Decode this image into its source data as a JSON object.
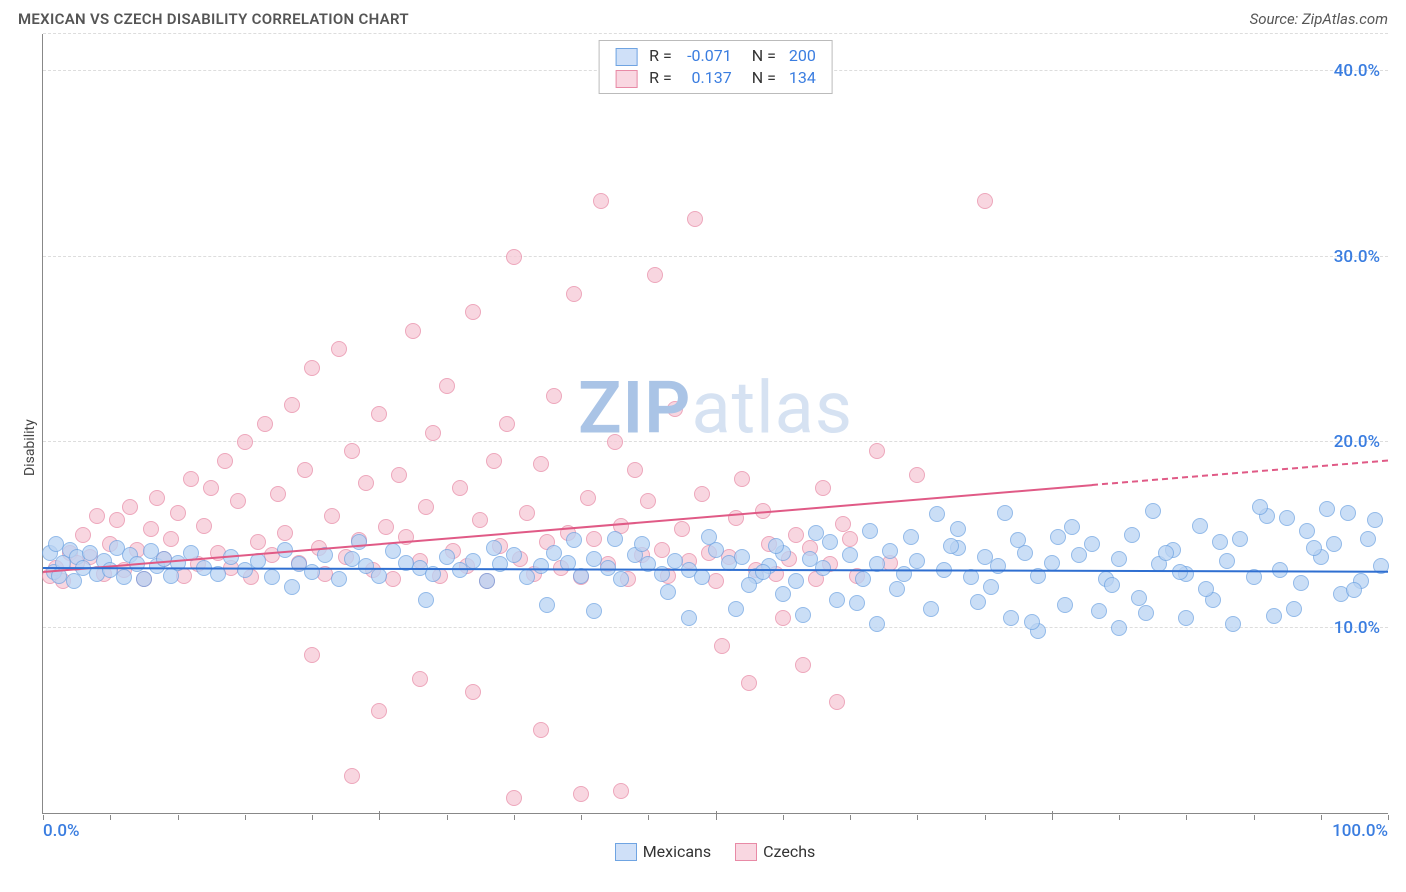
{
  "title": "MEXICAN VS CZECH DISABILITY CORRELATION CHART",
  "source": "Source: ZipAtlas.com",
  "ylabel": "Disability",
  "watermark": {
    "bold": "ZIP",
    "light": "atlas",
    "color_bold": "#aac4e6",
    "color_light": "#d6e2f2"
  },
  "series": {
    "mexicans": {
      "label": "Mexicans",
      "fill": "#b9d3f3",
      "stroke": "#6fa4e2",
      "swatch_fill": "#cfe0f8",
      "swatch_border": "#6fa4e2",
      "r_label": "R =",
      "r_value": "-0.071",
      "n_label": "N =",
      "n_value": "200",
      "value_color": "#3a7de0",
      "trend": {
        "color": "#2f6fd1",
        "y_at_x0": 13.2,
        "y_at_x100": 13.0,
        "solid_until_x": 100
      }
    },
    "czechs": {
      "label": "Czechs",
      "fill": "#f6c9d6",
      "stroke": "#e88aa6",
      "swatch_fill": "#f9d7e1",
      "swatch_border": "#e88aa6",
      "r_label": "R =",
      "r_value": "0.137",
      "n_label": "N =",
      "n_value": "134",
      "value_color": "#3a7de0",
      "trend": {
        "color": "#e05a86",
        "y_at_x0": 13.0,
        "y_at_x100": 19.0,
        "solid_until_x": 78
      }
    }
  },
  "axes": {
    "x": {
      "min": 0,
      "max": 100,
      "label_min": "0.0%",
      "label_max": "100.0%",
      "label_color": "#3a7de0",
      "ticks": [
        0,
        5,
        10,
        15,
        20,
        25,
        30,
        35,
        40,
        45,
        50,
        55,
        60,
        65,
        70,
        75,
        80,
        85,
        90,
        95,
        100
      ],
      "major_ticks": [
        25,
        50,
        75
      ]
    },
    "y": {
      "min": 0,
      "max": 42,
      "gridlines": [
        10,
        20,
        30,
        40,
        42
      ],
      "labels": [
        {
          "v": 10,
          "t": "10.0%"
        },
        {
          "v": 20,
          "t": "20.0%"
        },
        {
          "v": 30,
          "t": "30.0%"
        },
        {
          "v": 40,
          "t": "40.0%"
        }
      ],
      "label_color": "#3a7de0"
    }
  },
  "point_radius": 8,
  "data": {
    "mexicans": [
      [
        0.5,
        14
      ],
      [
        0.8,
        13
      ],
      [
        1,
        14.5
      ],
      [
        1.2,
        12.8
      ],
      [
        1.5,
        13.5
      ],
      [
        2,
        14.2
      ],
      [
        2.3,
        12.5
      ],
      [
        2.5,
        13.8
      ],
      [
        3,
        13.2
      ],
      [
        3.5,
        14
      ],
      [
        4,
        12.9
      ],
      [
        4.5,
        13.6
      ],
      [
        5,
        13.1
      ],
      [
        5.5,
        14.3
      ],
      [
        6,
        12.7
      ],
      [
        6.5,
        13.9
      ],
      [
        7,
        13.4
      ],
      [
        7.5,
        12.6
      ],
      [
        8,
        14.1
      ],
      [
        8.5,
        13.3
      ],
      [
        9,
        13.7
      ],
      [
        9.5,
        12.8
      ],
      [
        10,
        13.5
      ],
      [
        11,
        14
      ],
      [
        12,
        13.2
      ],
      [
        13,
        12.9
      ],
      [
        14,
        13.8
      ],
      [
        15,
        13.1
      ],
      [
        16,
        13.6
      ],
      [
        17,
        12.7
      ],
      [
        18,
        14.2
      ],
      [
        19,
        13.4
      ],
      [
        20,
        13
      ],
      [
        21,
        13.9
      ],
      [
        22,
        12.6
      ],
      [
        23,
        13.7
      ],
      [
        24,
        13.3
      ],
      [
        25,
        12.8
      ],
      [
        26,
        14.1
      ],
      [
        27,
        13.5
      ],
      [
        28,
        13.2
      ],
      [
        29,
        12.9
      ],
      [
        30,
        13.8
      ],
      [
        31,
        13.1
      ],
      [
        32,
        13.6
      ],
      [
        33,
        12.5
      ],
      [
        34,
        13.4
      ],
      [
        35,
        13.9
      ],
      [
        36,
        12.7
      ],
      [
        37,
        13.3
      ],
      [
        38,
        14
      ],
      [
        39,
        13.5
      ],
      [
        40,
        12.8
      ],
      [
        41,
        13.7
      ],
      [
        42,
        13.2
      ],
      [
        43,
        12.6
      ],
      [
        44,
        13.9
      ],
      [
        45,
        13.4
      ],
      [
        46,
        12.9
      ],
      [
        47,
        13.6
      ],
      [
        48,
        13.1
      ],
      [
        49,
        12.7
      ],
      [
        50,
        14.2
      ],
      [
        51,
        13.5
      ],
      [
        52,
        13.8
      ],
      [
        53,
        12.8
      ],
      [
        54,
        13.3
      ],
      [
        55,
        14
      ],
      [
        56,
        12.5
      ],
      [
        57,
        13.7
      ],
      [
        58,
        13.2
      ],
      [
        59,
        11.5
      ],
      [
        60,
        13.9
      ],
      [
        61,
        12.6
      ],
      [
        62,
        13.4
      ],
      [
        63,
        14.1
      ],
      [
        64,
        12.9
      ],
      [
        65,
        13.6
      ],
      [
        66,
        11
      ],
      [
        67,
        13.1
      ],
      [
        68,
        14.3
      ],
      [
        69,
        12.7
      ],
      [
        70,
        13.8
      ],
      [
        71,
        13.3
      ],
      [
        72,
        10.5
      ],
      [
        73,
        14
      ],
      [
        74,
        12.8
      ],
      [
        75,
        13.5
      ],
      [
        76,
        11.2
      ],
      [
        77,
        13.9
      ],
      [
        78,
        14.5
      ],
      [
        79,
        12.6
      ],
      [
        80,
        13.7
      ],
      [
        81,
        15
      ],
      [
        82,
        10.8
      ],
      [
        83,
        13.4
      ],
      [
        84,
        14.2
      ],
      [
        85,
        12.9
      ],
      [
        86,
        15.5
      ],
      [
        87,
        11.5
      ],
      [
        88,
        13.6
      ],
      [
        89,
        14.8
      ],
      [
        90,
        12.7
      ],
      [
        91,
        16
      ],
      [
        92,
        13.1
      ],
      [
        93,
        11
      ],
      [
        94,
        15.2
      ],
      [
        95,
        13.8
      ],
      [
        96,
        14.5
      ],
      [
        97,
        16.2
      ],
      [
        98,
        12.5
      ],
      [
        99,
        15.8
      ],
      [
        99.5,
        13.3
      ],
      [
        62,
        10.2
      ],
      [
        74,
        9.8
      ],
      [
        80,
        10
      ],
      [
        85,
        10.5
      ],
      [
        68,
        15.3
      ],
      [
        55,
        11.8
      ],
      [
        48,
        10.5
      ],
      [
        44.5,
        14.5
      ],
      [
        37.5,
        11.2
      ],
      [
        42.5,
        14.8
      ],
      [
        51.5,
        11
      ],
      [
        58.5,
        14.6
      ],
      [
        64.5,
        14.9
      ],
      [
        70.5,
        12.2
      ],
      [
        76.5,
        15.4
      ],
      [
        82.5,
        16.3
      ],
      [
        88.5,
        10.2
      ],
      [
        92.5,
        15.9
      ],
      [
        96.5,
        11.8
      ],
      [
        33.5,
        14.3
      ],
      [
        28.5,
        11.5
      ],
      [
        23.5,
        14.6
      ],
      [
        18.5,
        12.2
      ],
      [
        54.5,
        14.4
      ],
      [
        60.5,
        11.3
      ],
      [
        66.5,
        16.1
      ],
      [
        72.5,
        14.7
      ],
      [
        78.5,
        10.9
      ],
      [
        84.5,
        13.0
      ],
      [
        90.5,
        16.5
      ],
      [
        94.5,
        14.3
      ],
      [
        97.5,
        12
      ],
      [
        39.5,
        14.7
      ],
      [
        46.5,
        11.9
      ],
      [
        52.5,
        12.3
      ],
      [
        57.5,
        15.1
      ],
      [
        63.5,
        12.1
      ],
      [
        69.5,
        11.4
      ],
      [
        75.5,
        14.9
      ],
      [
        81.5,
        11.6
      ],
      [
        87.5,
        14.6
      ],
      [
        93.5,
        12.4
      ],
      [
        98.5,
        14.8
      ],
      [
        41,
        10.9
      ],
      [
        49.5,
        14.9
      ],
      [
        56.5,
        10.7
      ],
      [
        71.5,
        16.2
      ],
      [
        79.5,
        12.3
      ],
      [
        86.5,
        12.1
      ],
      [
        91.5,
        10.6
      ],
      [
        95.5,
        16.4
      ],
      [
        83.5,
        14.0
      ],
      [
        73.5,
        10.3
      ],
      [
        67.5,
        14.4
      ],
      [
        61.5,
        15.2
      ],
      [
        53.5,
        13.0
      ]
    ],
    "czechs": [
      [
        0.5,
        12.8
      ],
      [
        1,
        13.2
      ],
      [
        1.5,
        12.5
      ],
      [
        2,
        14
      ],
      [
        2.5,
        13.5
      ],
      [
        3,
        15
      ],
      [
        3.5,
        13.8
      ],
      [
        4,
        16
      ],
      [
        4.5,
        12.9
      ],
      [
        5,
        14.5
      ],
      [
        5.5,
        15.8
      ],
      [
        6,
        13.1
      ],
      [
        6.5,
        16.5
      ],
      [
        7,
        14.2
      ],
      [
        7.5,
        12.6
      ],
      [
        8,
        15.3
      ],
      [
        8.5,
        17
      ],
      [
        9,
        13.7
      ],
      [
        9.5,
        14.8
      ],
      [
        10,
        16.2
      ],
      [
        10.5,
        12.8
      ],
      [
        11,
        18
      ],
      [
        11.5,
        13.4
      ],
      [
        12,
        15.5
      ],
      [
        12.5,
        17.5
      ],
      [
        13,
        14
      ],
      [
        13.5,
        19
      ],
      [
        14,
        13.2
      ],
      [
        14.5,
        16.8
      ],
      [
        15,
        20
      ],
      [
        15.5,
        12.7
      ],
      [
        16,
        14.6
      ],
      [
        16.5,
        21
      ],
      [
        17,
        13.9
      ],
      [
        17.5,
        17.2
      ],
      [
        18,
        15.1
      ],
      [
        18.5,
        22
      ],
      [
        19,
        13.5
      ],
      [
        19.5,
        18.5
      ],
      [
        20,
        24
      ],
      [
        20.5,
        14.3
      ],
      [
        21,
        12.9
      ],
      [
        21.5,
        16
      ],
      [
        22,
        25
      ],
      [
        22.5,
        13.8
      ],
      [
        23,
        19.5
      ],
      [
        23.5,
        14.7
      ],
      [
        24,
        17.8
      ],
      [
        24.5,
        13.1
      ],
      [
        25,
        21.5
      ],
      [
        25.5,
        15.4
      ],
      [
        26,
        12.6
      ],
      [
        26.5,
        18.2
      ],
      [
        27,
        14.9
      ],
      [
        27.5,
        26
      ],
      [
        28,
        13.6
      ],
      [
        28.5,
        16.5
      ],
      [
        29,
        20.5
      ],
      [
        29.5,
        12.8
      ],
      [
        30,
        23
      ],
      [
        30.5,
        14.1
      ],
      [
        31,
        17.5
      ],
      [
        31.5,
        13.3
      ],
      [
        32,
        27
      ],
      [
        32.5,
        15.8
      ],
      [
        33,
        12.5
      ],
      [
        33.5,
        19
      ],
      [
        34,
        14.4
      ],
      [
        34.5,
        21
      ],
      [
        35,
        30
      ],
      [
        35.5,
        13.7
      ],
      [
        36,
        16.2
      ],
      [
        36.5,
        12.9
      ],
      [
        37,
        18.8
      ],
      [
        37.5,
        14.6
      ],
      [
        38,
        22.5
      ],
      [
        38.5,
        13.2
      ],
      [
        39,
        15.1
      ],
      [
        39.5,
        28
      ],
      [
        40,
        12.7
      ],
      [
        40.5,
        17
      ],
      [
        41,
        14.8
      ],
      [
        41.5,
        33
      ],
      [
        42,
        13.4
      ],
      [
        42.5,
        20
      ],
      [
        43,
        15.5
      ],
      [
        43.5,
        12.6
      ],
      [
        44,
        18.5
      ],
      [
        44.5,
        13.9
      ],
      [
        45,
        16.8
      ],
      [
        45.5,
        29
      ],
      [
        46,
        14.2
      ],
      [
        46.5,
        12.8
      ],
      [
        47,
        21.8
      ],
      [
        47.5,
        15.3
      ],
      [
        48,
        13.6
      ],
      [
        48.5,
        32
      ],
      [
        49,
        17.2
      ],
      [
        49.5,
        14
      ],
      [
        50,
        12.5
      ],
      [
        50.5,
        9
      ],
      [
        51,
        13.8
      ],
      [
        51.5,
        15.9
      ],
      [
        52,
        18
      ],
      [
        52.5,
        7
      ],
      [
        53,
        13.1
      ],
      [
        53.5,
        16.3
      ],
      [
        54,
        14.5
      ],
      [
        54.5,
        12.9
      ],
      [
        55,
        10.5
      ],
      [
        55.5,
        13.7
      ],
      [
        56,
        15
      ],
      [
        56.5,
        8
      ],
      [
        57,
        14.3
      ],
      [
        57.5,
        12.6
      ],
      [
        58,
        17.5
      ],
      [
        58.5,
        13.4
      ],
      [
        59,
        6
      ],
      [
        59.5,
        15.6
      ],
      [
        60,
        14.8
      ],
      [
        60.5,
        12.8
      ],
      [
        62,
        19.5
      ],
      [
        63,
        13.5
      ],
      [
        65,
        18.2
      ],
      [
        70,
        33
      ],
      [
        40,
        1
      ],
      [
        43,
        1.2
      ],
      [
        32,
        6.5
      ],
      [
        28,
        7.2
      ],
      [
        37,
        4.5
      ],
      [
        35,
        0.8
      ],
      [
        25,
        5.5
      ],
      [
        20,
        8.5
      ],
      [
        23,
        2
      ]
    ]
  }
}
